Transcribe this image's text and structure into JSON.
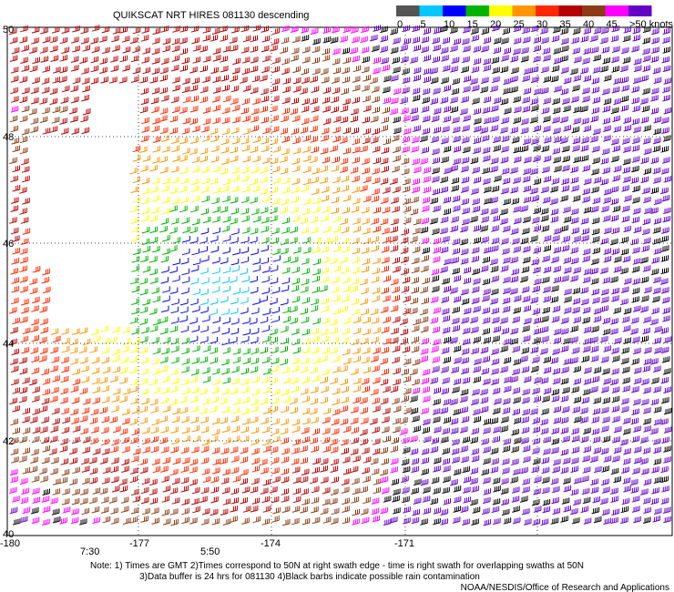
{
  "header": {
    "title": "QUIKSCAT NRT HIRES 081130 descending"
  },
  "legend": {
    "labels": [
      "0",
      "5",
      "10",
      "15",
      "20",
      "25",
      "30",
      "35",
      "40",
      "45",
      ">50 knots"
    ],
    "colors": [
      "#555555",
      "#00c8ff",
      "#0000ff",
      "#00b400",
      "#ffff00",
      "#ff9600",
      "#ff2800",
      "#b40000",
      "#8c3c14",
      "#ff00ff",
      "#6400c8"
    ]
  },
  "map": {
    "lat_labels": [
      "50",
      "48",
      "46",
      "44",
      "42",
      "40"
    ],
    "lon_labels": [
      "-180",
      "-177",
      "-174",
      "-171"
    ],
    "times": [
      "7:30",
      "5:50"
    ]
  },
  "notes": [
    "Note: 1) Times are GMT 2)Times correspond to 50N at right swath edge - time is right swath for overlapping swaths at 50N",
    "3)Data buffer is 24 hrs for 081130 4)Black barbs indicate possible rain contamination",
    "NOAA/NESDIS/Office of Research and Applications"
  ]
}
